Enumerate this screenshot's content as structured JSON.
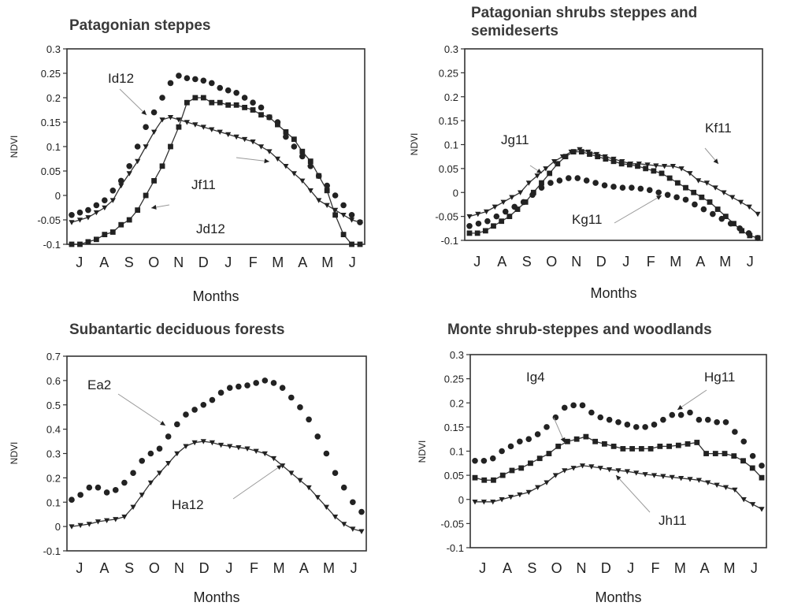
{
  "chart_data": [
    {
      "type": "line",
      "title": "Patagonian steppes",
      "xlabel": "Months",
      "ylabel": "NDVI",
      "ylim": [
        -0.1,
        0.3
      ],
      "ystep": 0.05,
      "month_labels": [
        "J",
        "A",
        "S",
        "O",
        "N",
        "D",
        "J",
        "F",
        "M",
        "A",
        "M",
        "J"
      ],
      "series": [
        {
          "name": "Id12",
          "marker": "circle",
          "line": false,
          "values": [
            -0.04,
            -0.035,
            -0.03,
            -0.02,
            -0.01,
            0.01,
            0.03,
            0.06,
            0.1,
            0.14,
            0.17,
            0.2,
            0.23,
            0.245,
            0.24,
            0.238,
            0.235,
            0.23,
            0.22,
            0.215,
            0.21,
            0.2,
            0.19,
            0.18,
            0.16,
            0.15,
            0.12,
            0.1,
            0.08,
            0.06,
            0.04,
            0.02,
            0.0,
            -0.02,
            -0.04,
            -0.055
          ]
        },
        {
          "name": "Jd12",
          "marker": "square",
          "line": true,
          "values": [
            -0.1,
            -0.1,
            -0.095,
            -0.09,
            -0.08,
            -0.075,
            -0.06,
            -0.05,
            -0.03,
            0.0,
            0.03,
            0.06,
            0.1,
            0.14,
            0.19,
            0.2,
            0.2,
            0.19,
            0.19,
            0.185,
            0.185,
            0.18,
            0.175,
            0.165,
            0.16,
            0.145,
            0.13,
            0.115,
            0.09,
            0.07,
            0.04,
            0.01,
            -0.04,
            -0.08,
            -0.1,
            -0.1
          ]
        },
        {
          "name": "Jf11",
          "marker": "triangle",
          "line": true,
          "values": [
            -0.055,
            -0.05,
            -0.045,
            -0.035,
            -0.025,
            -0.01,
            0.02,
            0.045,
            0.07,
            0.1,
            0.13,
            0.155,
            0.16,
            0.155,
            0.15,
            0.145,
            0.14,
            0.135,
            0.13,
            0.125,
            0.12,
            0.115,
            0.11,
            0.1,
            0.09,
            0.075,
            0.06,
            0.045,
            0.03,
            0.01,
            -0.01,
            -0.02,
            -0.03,
            -0.04,
            -0.05,
            -0.055
          ]
        }
      ],
      "annotations": [
        "Id12",
        "Jf11",
        "Jd12"
      ]
    },
    {
      "type": "line",
      "title": "Patagonian shrubs steppes and semideserts",
      "title_lines": [
        "Patagonian shrubs steppes and",
        "semideserts"
      ],
      "xlabel": "Months",
      "ylabel": "NDVI",
      "ylim": [
        -0.1,
        0.3
      ],
      "ystep": 0.05,
      "month_labels": [
        "J",
        "A",
        "S",
        "O",
        "N",
        "D",
        "J",
        "F",
        "M",
        "A",
        "M",
        "J"
      ],
      "series": [
        {
          "name": "Jg11",
          "marker": "triangle",
          "line": true,
          "values": [
            -0.05,
            -0.045,
            -0.04,
            -0.03,
            -0.02,
            -0.01,
            0.0,
            0.02,
            0.035,
            0.05,
            0.065,
            0.075,
            0.085,
            0.09,
            0.085,
            0.08,
            0.075,
            0.07,
            0.065,
            0.06,
            0.06,
            0.058,
            0.056,
            0.055,
            0.055,
            0.05,
            0.04,
            0.025,
            0.02,
            0.01,
            0.0,
            -0.01,
            -0.02,
            -0.03,
            -0.045
          ]
        },
        {
          "name": "Kf11",
          "marker": "square",
          "line": true,
          "values": [
            -0.085,
            -0.085,
            -0.08,
            -0.07,
            -0.06,
            -0.05,
            -0.035,
            -0.02,
            0.0,
            0.02,
            0.04,
            0.06,
            0.075,
            0.085,
            0.085,
            0.08,
            0.075,
            0.07,
            0.065,
            0.06,
            0.058,
            0.055,
            0.05,
            0.045,
            0.04,
            0.03,
            0.02,
            0.01,
            0.0,
            -0.01,
            -0.02,
            -0.035,
            -0.05,
            -0.065,
            -0.08,
            -0.09,
            -0.095
          ]
        },
        {
          "name": "Kg11",
          "marker": "circle",
          "line": false,
          "values": [
            -0.07,
            -0.065,
            -0.06,
            -0.05,
            -0.04,
            -0.03,
            -0.02,
            -0.005,
            0.01,
            0.02,
            0.025,
            0.03,
            0.03,
            0.025,
            0.02,
            0.015,
            0.012,
            0.01,
            0.01,
            0.008,
            0.005,
            0.0,
            -0.005,
            -0.01,
            -0.015,
            -0.025,
            -0.035,
            -0.045,
            -0.055,
            -0.065,
            -0.075,
            -0.085,
            -0.095
          ]
        }
      ],
      "annotations": [
        "Jg11",
        "Kf11",
        "Kg11"
      ]
    },
    {
      "type": "line",
      "title": "Subantartic deciduous forests",
      "xlabel": "Months",
      "ylabel": "NDVI",
      "ylim": [
        -0.1,
        0.7
      ],
      "ystep": 0.1,
      "month_labels": [
        "J",
        "A",
        "S",
        "O",
        "N",
        "D",
        "J",
        "F",
        "M",
        "A",
        "M",
        "J"
      ],
      "series": [
        {
          "name": "Ea2",
          "marker": "circle",
          "line": false,
          "values": [
            0.11,
            0.13,
            0.16,
            0.16,
            0.14,
            0.15,
            0.18,
            0.22,
            0.27,
            0.3,
            0.32,
            0.37,
            0.42,
            0.46,
            0.48,
            0.5,
            0.52,
            0.55,
            0.57,
            0.575,
            0.58,
            0.59,
            0.6,
            0.59,
            0.57,
            0.53,
            0.49,
            0.44,
            0.37,
            0.3,
            0.22,
            0.16,
            0.1,
            0.06
          ]
        },
        {
          "name": "Ha12",
          "marker": "triangle",
          "line": true,
          "values": [
            0.0,
            0.005,
            0.01,
            0.02,
            0.025,
            0.03,
            0.04,
            0.08,
            0.13,
            0.18,
            0.22,
            0.26,
            0.3,
            0.33,
            0.345,
            0.35,
            0.345,
            0.335,
            0.33,
            0.325,
            0.32,
            0.31,
            0.3,
            0.28,
            0.25,
            0.22,
            0.19,
            0.16,
            0.12,
            0.08,
            0.04,
            0.01,
            -0.01,
            -0.02
          ]
        }
      ],
      "annotations": [
        "Ea2",
        "Ha12"
      ]
    },
    {
      "type": "line",
      "title": "Monte shrub-steppes and woodlands",
      "xlabel": "Months",
      "ylabel": "NDVI",
      "ylim": [
        -0.1,
        0.3
      ],
      "ystep": 0.05,
      "month_labels": [
        "J",
        "A",
        "S",
        "O",
        "N",
        "D",
        "J",
        "F",
        "M",
        "A",
        "M",
        "J"
      ],
      "series": [
        {
          "name": "Ig4",
          "marker": "circle",
          "line": false,
          "values": [
            0.08,
            0.08,
            0.085,
            0.1,
            0.11,
            0.12,
            0.125,
            0.135,
            0.15,
            0.17,
            0.19,
            0.195,
            0.195,
            0.18,
            0.17,
            0.165,
            0.16,
            0.155,
            0.15,
            0.15,
            0.155,
            0.165,
            0.175,
            0.175,
            0.18,
            0.165,
            0.165,
            0.16,
            0.16,
            0.14,
            0.12,
            0.09,
            0.07
          ]
        },
        {
          "name": "Hg11",
          "marker": "square",
          "line": true,
          "values": [
            0.045,
            0.04,
            0.04,
            0.05,
            0.06,
            0.065,
            0.075,
            0.085,
            0.095,
            0.11,
            0.12,
            0.125,
            0.13,
            0.12,
            0.115,
            0.11,
            0.105,
            0.105,
            0.105,
            0.105,
            0.11,
            0.11,
            0.112,
            0.115,
            0.118,
            0.095,
            0.095,
            0.095,
            0.09,
            0.08,
            0.065,
            0.045
          ]
        },
        {
          "name": "Jh11",
          "marker": "triangle",
          "line": true,
          "values": [
            -0.005,
            -0.005,
            -0.005,
            0.0,
            0.005,
            0.01,
            0.015,
            0.025,
            0.035,
            0.05,
            0.06,
            0.065,
            0.07,
            0.068,
            0.065,
            0.062,
            0.06,
            0.058,
            0.055,
            0.052,
            0.05,
            0.048,
            0.046,
            0.044,
            0.042,
            0.04,
            0.035,
            0.03,
            0.025,
            0.02,
            0.0,
            -0.01,
            -0.02
          ]
        }
      ],
      "annotations": [
        "Ig4",
        "Hg11",
        "Jh11"
      ]
    }
  ]
}
